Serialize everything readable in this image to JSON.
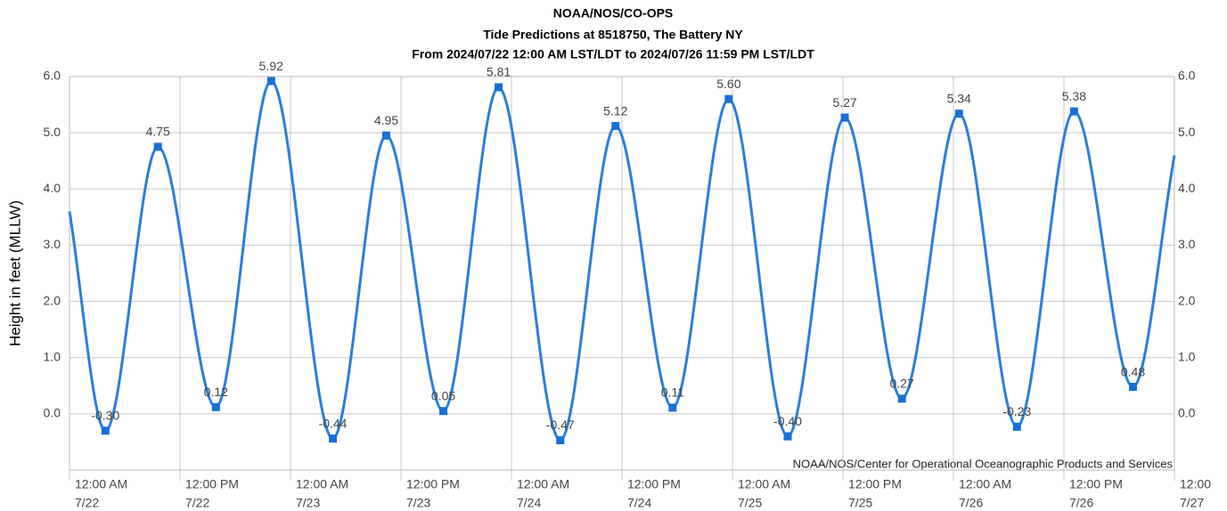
{
  "chart_data": {
    "type": "line",
    "title": "NOAA/NOS/CO-OPS",
    "subtitle": "Tide Predictions at 8518750, The Battery NY",
    "subtitle2": "From 2024/07/22 12:00 AM LST/LDT to 2024/07/26 11:59 PM LST/LDT",
    "y_label": "Height in feet (MLLW)",
    "credit": "NOAA/NOS/Center for Operational Oceanographic Products and Services",
    "xlim": [
      0,
      120
    ],
    "xticks": [
      {
        "value": 0,
        "label": [
          "12:00 AM",
          "7/22"
        ]
      },
      {
        "value": 12,
        "label": [
          "12:00 PM",
          "7/22"
        ]
      },
      {
        "value": 24,
        "label": [
          "12:00 AM",
          "7/23"
        ]
      },
      {
        "value": 36,
        "label": [
          "12:00 PM",
          "7/23"
        ]
      },
      {
        "value": 48,
        "label": [
          "12:00 AM",
          "7/24"
        ]
      },
      {
        "value": 60,
        "label": [
          "12:00 PM",
          "7/24"
        ]
      },
      {
        "value": 72,
        "label": [
          "12:00 AM",
          "7/25"
        ]
      },
      {
        "value": 84,
        "label": [
          "12:00 PM",
          "7/25"
        ]
      },
      {
        "value": 96,
        "label": [
          "12:00 AM",
          "7/26"
        ]
      },
      {
        "value": 108,
        "label": [
          "12:00 PM",
          "7/26"
        ]
      },
      {
        "value": 120,
        "label": [
          "12:00",
          "7/27"
        ]
      }
    ],
    "ylim": [
      -1,
      6
    ],
    "yticks": [
      {
        "value": 0,
        "label": "0.0"
      },
      {
        "value": 1,
        "label": "1.0"
      },
      {
        "value": 2,
        "label": "2.0"
      },
      {
        "value": 3,
        "label": "3.0"
      },
      {
        "value": 4,
        "label": "4.0"
      },
      {
        "value": 5,
        "label": "5.0"
      },
      {
        "value": 6,
        "label": "6.0"
      }
    ],
    "grid": true,
    "series": [
      {
        "color": "#2a7fd6",
        "marker_color": "#1570d8",
        "x": [
          0,
          3.9,
          9.6,
          15.9,
          21.9,
          28.6,
          34.4,
          40.6,
          46.6,
          53.3,
          59.3,
          65.5,
          71.6,
          78.0,
          84.2,
          90.4,
          96.6,
          102.9,
          109.1,
          115.5,
          120
        ],
        "values": [
          3.6,
          -0.3,
          4.75,
          0.12,
          5.92,
          -0.44,
          4.95,
          0.05,
          5.81,
          -0.47,
          5.12,
          0.11,
          5.6,
          -0.4,
          5.27,
          0.27,
          5.34,
          -0.23,
          5.38,
          0.48,
          4.6
        ],
        "value_labels": [
          null,
          "-0.30",
          "4.75",
          "0.12",
          "5.92",
          "-0.44",
          "4.95",
          "0.05",
          "5.81",
          "-0.47",
          "5.12",
          "0.11",
          "5.60",
          "-0.40",
          "5.27",
          "0.27",
          "5.34",
          "-0.23",
          "5.38",
          "0.48",
          null
        ]
      }
    ]
  }
}
